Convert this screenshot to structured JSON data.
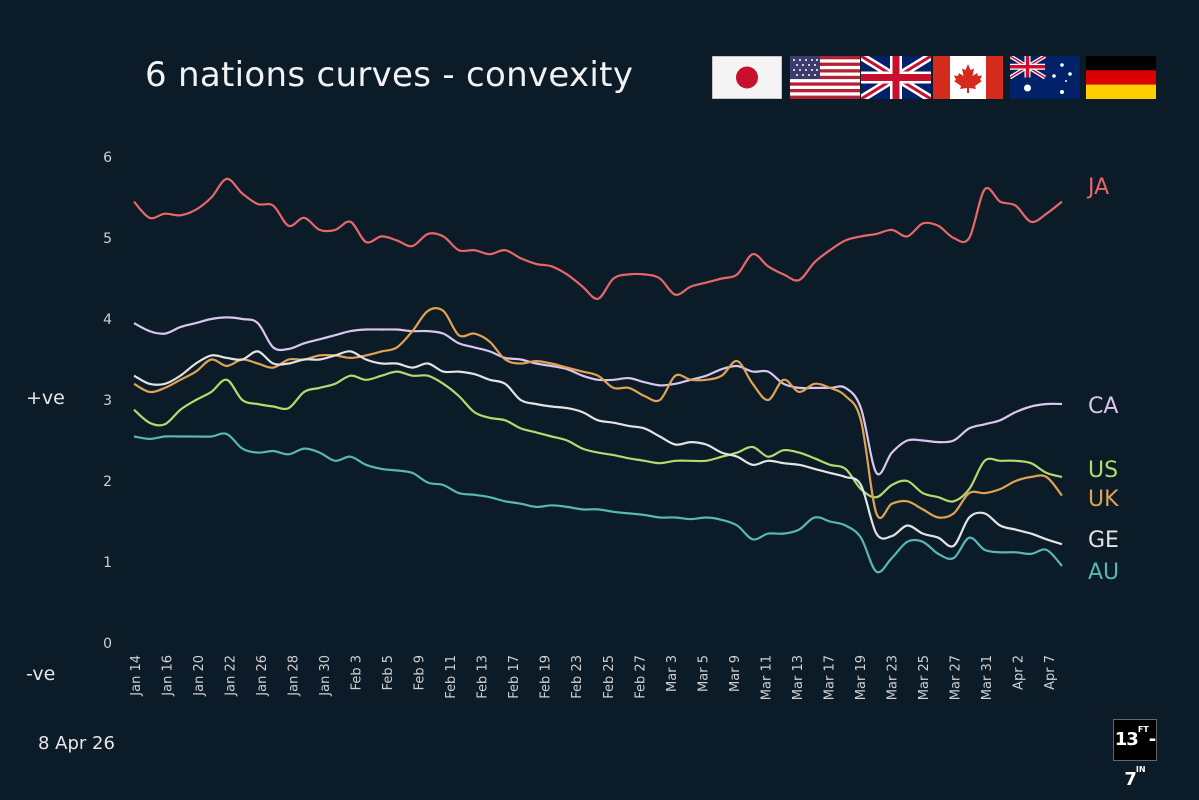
{
  "header": {
    "title": "6 nations curves - convexity"
  },
  "side_labels": {
    "positive": "+ve",
    "negative": "-ve"
  },
  "footer": {
    "date": "8 Apr 26",
    "logo": {
      "main": "13",
      "sup1": "FT",
      "dash": "-",
      "main2": "7",
      "sup2": "IN"
    }
  },
  "flags": [
    {
      "name": "japan-flag-icon"
    },
    {
      "name": "usa-flag-icon"
    },
    {
      "name": "uk-flag-icon"
    },
    {
      "name": "canada-flag-icon"
    },
    {
      "name": "australia-flag-icon"
    },
    {
      "name": "germany-flag-icon"
    }
  ],
  "chart_data": {
    "type": "line",
    "title": "6 nations curves - convexity",
    "xlabel": "",
    "ylabel": "",
    "ylim": [
      0,
      6
    ],
    "y_ticks": [
      "0",
      "1",
      "2",
      "3",
      "4",
      "5",
      "6"
    ],
    "x_tick_labels": [
      "Jan 14",
      "Jan 16",
      "Jan 20",
      "Jan 22",
      "Jan 26",
      "Jan 28",
      "Jan 30",
      "Feb 3",
      "Feb 5",
      "Feb 9",
      "Feb 11",
      "Feb 13",
      "Feb 17",
      "Feb 19",
      "Feb 23",
      "Feb 25",
      "Feb 27",
      "Mar 3",
      "Mar 5",
      "Mar 9",
      "Mar 11",
      "Mar 13",
      "Mar 17",
      "Mar 19",
      "Mar 23",
      "Mar 25",
      "Mar 27",
      "Mar 31",
      "Apr 2",
      "Apr 7"
    ],
    "x_count": 61,
    "series": [
      {
        "name": "JA",
        "color": "#e8676a",
        "values": [
          5.45,
          5.25,
          5.3,
          5.28,
          5.35,
          5.5,
          5.73,
          5.55,
          5.42,
          5.4,
          5.15,
          5.25,
          5.1,
          5.1,
          5.2,
          4.95,
          5.02,
          4.97,
          4.9,
          5.05,
          5.02,
          4.85,
          4.85,
          4.8,
          4.85,
          4.75,
          4.68,
          4.65,
          4.55,
          4.4,
          4.25,
          4.5,
          4.55,
          4.55,
          4.5,
          4.3,
          4.4,
          4.45,
          4.5,
          4.55,
          4.8,
          4.65,
          4.55,
          4.48,
          4.7,
          4.85,
          4.97,
          5.02,
          5.05,
          5.1,
          5.02,
          5.18,
          5.15,
          5.0,
          5.0,
          5.6,
          5.45,
          5.4,
          5.2,
          5.3,
          5.45
        ]
      },
      {
        "name": "CA",
        "color": "#d9c6ee",
        "values": [
          3.95,
          3.85,
          3.82,
          3.9,
          3.95,
          4.0,
          4.02,
          4.0,
          3.95,
          3.65,
          3.63,
          3.7,
          3.75,
          3.8,
          3.85,
          3.87,
          3.87,
          3.87,
          3.85,
          3.85,
          3.82,
          3.7,
          3.65,
          3.6,
          3.52,
          3.5,
          3.45,
          3.42,
          3.38,
          3.3,
          3.25,
          3.25,
          3.27,
          3.22,
          3.18,
          3.2,
          3.25,
          3.3,
          3.38,
          3.42,
          3.35,
          3.35,
          3.2,
          3.15,
          3.15,
          3.15,
          3.15,
          2.9,
          2.1,
          2.35,
          2.5,
          2.5,
          2.48,
          2.5,
          2.65,
          2.7,
          2.75,
          2.85,
          2.92,
          2.95,
          2.95
        ]
      },
      {
        "name": "US",
        "color": "#b5d96e",
        "values": [
          2.88,
          2.72,
          2.7,
          2.88,
          3.0,
          3.1,
          3.25,
          3.0,
          2.95,
          2.92,
          2.9,
          3.1,
          3.15,
          3.2,
          3.3,
          3.25,
          3.3,
          3.35,
          3.3,
          3.3,
          3.2,
          3.05,
          2.85,
          2.78,
          2.75,
          2.65,
          2.6,
          2.55,
          2.5,
          2.4,
          2.35,
          2.32,
          2.28,
          2.25,
          2.22,
          2.25,
          2.25,
          2.25,
          2.3,
          2.35,
          2.42,
          2.3,
          2.38,
          2.35,
          2.28,
          2.2,
          2.15,
          1.9,
          1.8,
          1.95,
          2.0,
          1.85,
          1.8,
          1.75,
          1.9,
          2.25,
          2.25,
          2.25,
          2.22,
          2.1,
          2.05
        ]
      },
      {
        "name": "UK",
        "color": "#e0a352",
        "values": [
          3.2,
          3.1,
          3.15,
          3.25,
          3.35,
          3.5,
          3.42,
          3.5,
          3.45,
          3.4,
          3.5,
          3.5,
          3.55,
          3.55,
          3.52,
          3.55,
          3.6,
          3.65,
          3.85,
          4.1,
          4.1,
          3.8,
          3.82,
          3.72,
          3.5,
          3.45,
          3.48,
          3.45,
          3.4,
          3.35,
          3.3,
          3.15,
          3.15,
          3.05,
          3.0,
          3.3,
          3.25,
          3.25,
          3.3,
          3.48,
          3.2,
          3.0,
          3.25,
          3.1,
          3.2,
          3.15,
          3.05,
          2.75,
          1.6,
          1.72,
          1.75,
          1.65,
          1.55,
          1.6,
          1.85,
          1.85,
          1.9,
          2.0,
          2.05,
          2.05,
          1.82
        ]
      },
      {
        "name": "GE",
        "color": "#e3e3e3",
        "values": [
          3.3,
          3.2,
          3.2,
          3.3,
          3.45,
          3.55,
          3.52,
          3.5,
          3.6,
          3.45,
          3.45,
          3.5,
          3.5,
          3.55,
          3.6,
          3.5,
          3.45,
          3.45,
          3.4,
          3.45,
          3.35,
          3.35,
          3.32,
          3.25,
          3.2,
          3.0,
          2.95,
          2.92,
          2.9,
          2.85,
          2.75,
          2.72,
          2.68,
          2.65,
          2.55,
          2.45,
          2.48,
          2.45,
          2.35,
          2.3,
          2.2,
          2.25,
          2.22,
          2.2,
          2.15,
          2.1,
          2.05,
          1.95,
          1.35,
          1.32,
          1.45,
          1.35,
          1.3,
          1.2,
          1.55,
          1.6,
          1.45,
          1.4,
          1.35,
          1.28,
          1.22
        ]
      },
      {
        "name": "AU",
        "color": "#58b7b3",
        "values": [
          2.55,
          2.52,
          2.55,
          2.55,
          2.55,
          2.55,
          2.58,
          2.4,
          2.35,
          2.37,
          2.33,
          2.4,
          2.35,
          2.25,
          2.3,
          2.2,
          2.15,
          2.13,
          2.1,
          1.98,
          1.95,
          1.85,
          1.83,
          1.8,
          1.75,
          1.72,
          1.68,
          1.7,
          1.68,
          1.65,
          1.65,
          1.62,
          1.6,
          1.58,
          1.55,
          1.55,
          1.53,
          1.55,
          1.52,
          1.45,
          1.28,
          1.35,
          1.35,
          1.4,
          1.55,
          1.5,
          1.45,
          1.3,
          0.88,
          1.05,
          1.25,
          1.25,
          1.1,
          1.05,
          1.3,
          1.15,
          1.12,
          1.12,
          1.1,
          1.15,
          0.95
        ]
      }
    ],
    "series_labels": [
      "JA",
      "CA",
      "US",
      "UK",
      "GE",
      "AU"
    ]
  }
}
